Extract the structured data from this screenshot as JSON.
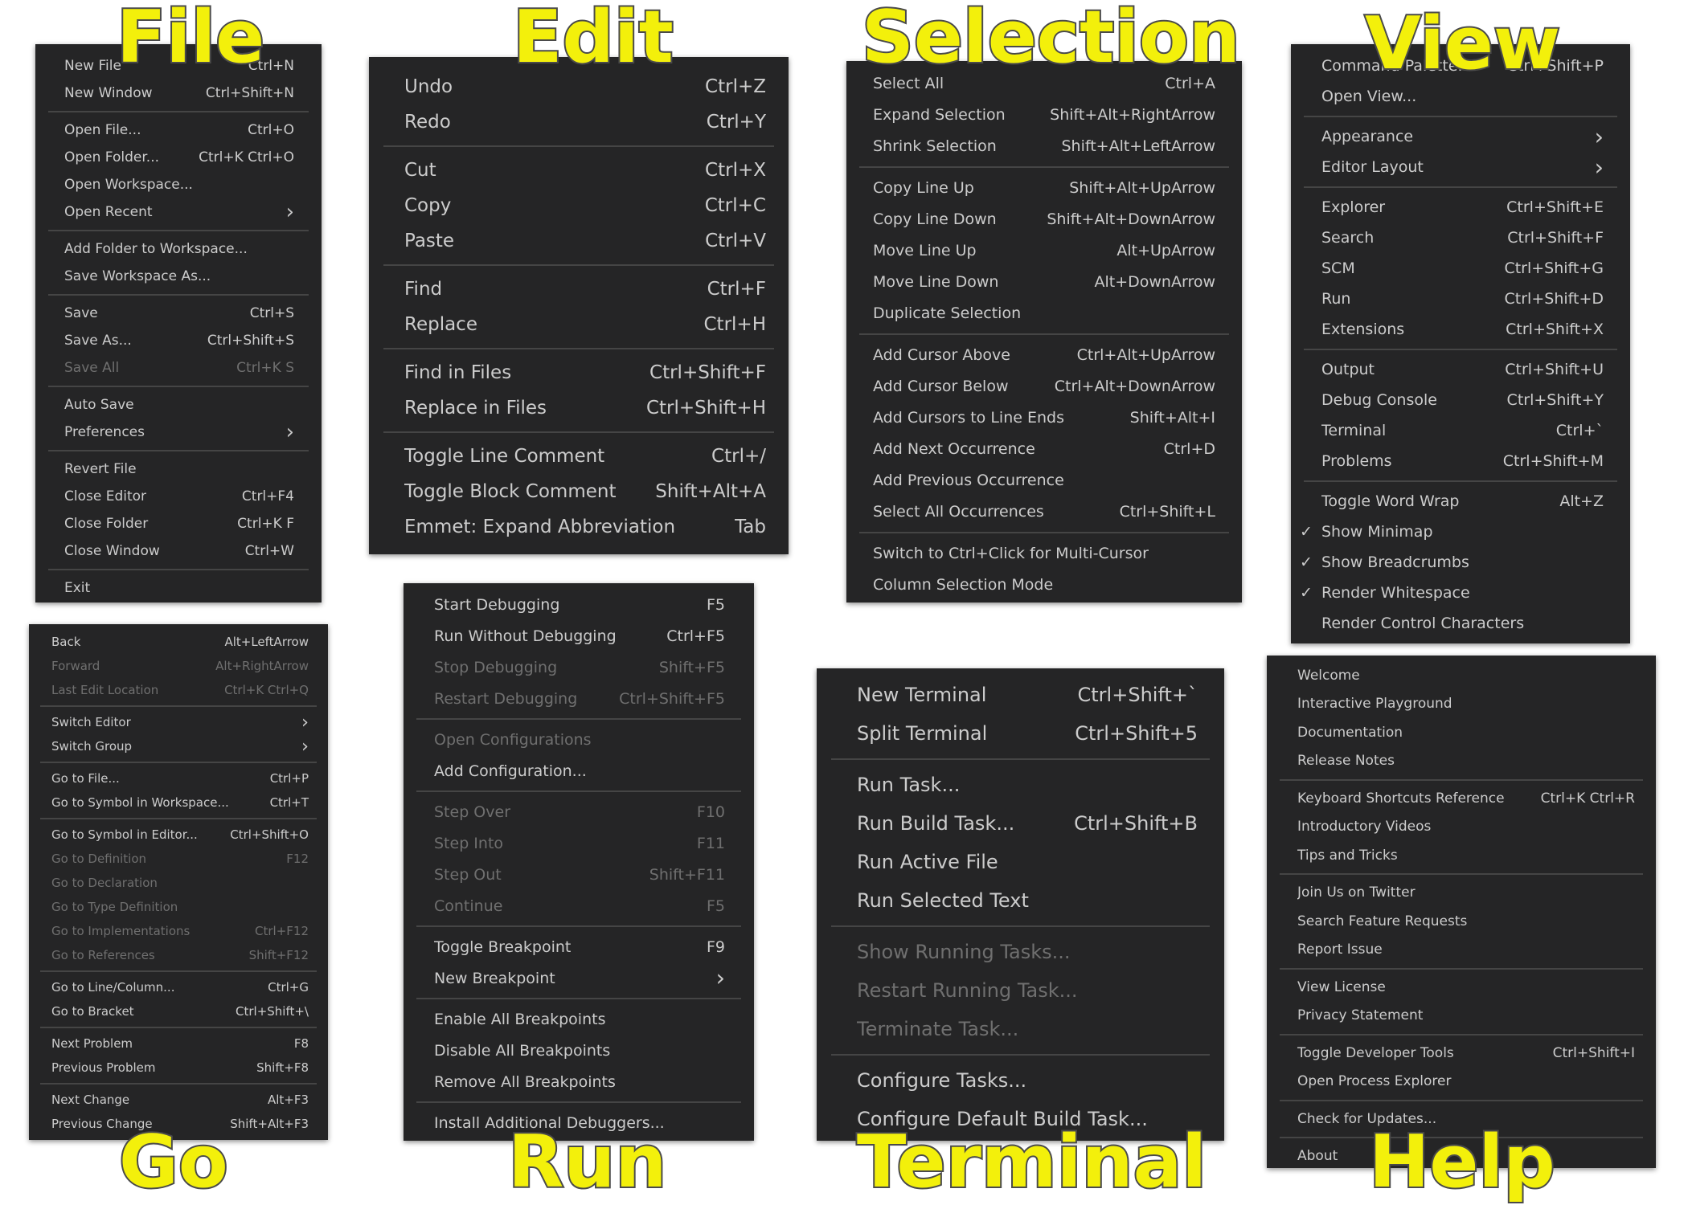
{
  "titles": {
    "file": "File",
    "edit": "Edit",
    "selection": "Selection",
    "view": "View",
    "go": "Go",
    "run": "Run",
    "terminal": "Terminal",
    "help": "Help"
  },
  "colors": {
    "menu_bg": "#252526",
    "text": "#cccccc",
    "disabled": "#6f6f6f",
    "separator": "#454545",
    "title_fill": "#f3f00b",
    "title_outline": "#4a4a4a"
  },
  "menus": [
    {
      "id": "file",
      "groups": [
        [
          {
            "label": "New File",
            "key": "Ctrl+N"
          },
          {
            "label": "New Window",
            "key": "Ctrl+Shift+N"
          }
        ],
        [
          {
            "label": "Open File...",
            "key": "Ctrl+O"
          },
          {
            "label": "Open Folder...",
            "key": "Ctrl+K Ctrl+O"
          },
          {
            "label": "Open Workspace..."
          },
          {
            "label": "Open Recent",
            "submenu": true
          }
        ],
        [
          {
            "label": "Add Folder to Workspace..."
          },
          {
            "label": "Save Workspace As..."
          }
        ],
        [
          {
            "label": "Save",
            "key": "Ctrl+S"
          },
          {
            "label": "Save As...",
            "key": "Ctrl+Shift+S"
          },
          {
            "label": "Save All",
            "key": "Ctrl+K S",
            "disabled": true
          }
        ],
        [
          {
            "label": "Auto Save"
          },
          {
            "label": "Preferences",
            "submenu": true
          }
        ],
        [
          {
            "label": "Revert File"
          },
          {
            "label": "Close Editor",
            "key": "Ctrl+F4"
          },
          {
            "label": "Close Folder",
            "key": "Ctrl+K F"
          },
          {
            "label": "Close Window",
            "key": "Ctrl+W"
          }
        ],
        [
          {
            "label": "Exit"
          }
        ]
      ]
    },
    {
      "id": "edit",
      "groups": [
        [
          {
            "label": "Undo",
            "key": "Ctrl+Z"
          },
          {
            "label": "Redo",
            "key": "Ctrl+Y"
          }
        ],
        [
          {
            "label": "Cut",
            "key": "Ctrl+X"
          },
          {
            "label": "Copy",
            "key": "Ctrl+C"
          },
          {
            "label": "Paste",
            "key": "Ctrl+V"
          }
        ],
        [
          {
            "label": "Find",
            "key": "Ctrl+F"
          },
          {
            "label": "Replace",
            "key": "Ctrl+H"
          }
        ],
        [
          {
            "label": "Find in Files",
            "key": "Ctrl+Shift+F"
          },
          {
            "label": "Replace in Files",
            "key": "Ctrl+Shift+H"
          }
        ],
        [
          {
            "label": "Toggle Line Comment",
            "key": "Ctrl+/"
          },
          {
            "label": "Toggle Block Comment",
            "key": "Shift+Alt+A"
          },
          {
            "label": "Emmet: Expand Abbreviation",
            "key": "Tab"
          }
        ]
      ]
    },
    {
      "id": "selection",
      "groups": [
        [
          {
            "label": "Select All",
            "key": "Ctrl+A"
          },
          {
            "label": "Expand Selection",
            "key": "Shift+Alt+RightArrow"
          },
          {
            "label": "Shrink Selection",
            "key": "Shift+Alt+LeftArrow"
          }
        ],
        [
          {
            "label": "Copy Line Up",
            "key": "Shift+Alt+UpArrow"
          },
          {
            "label": "Copy Line Down",
            "key": "Shift+Alt+DownArrow"
          },
          {
            "label": "Move Line Up",
            "key": "Alt+UpArrow"
          },
          {
            "label": "Move Line Down",
            "key": "Alt+DownArrow"
          },
          {
            "label": "Duplicate Selection"
          }
        ],
        [
          {
            "label": "Add Cursor Above",
            "key": "Ctrl+Alt+UpArrow"
          },
          {
            "label": "Add Cursor Below",
            "key": "Ctrl+Alt+DownArrow"
          },
          {
            "label": "Add Cursors to Line Ends",
            "key": "Shift+Alt+I"
          },
          {
            "label": "Add Next Occurrence",
            "key": "Ctrl+D"
          },
          {
            "label": "Add Previous Occurrence"
          },
          {
            "label": "Select All Occurrences",
            "key": "Ctrl+Shift+L"
          }
        ],
        [
          {
            "label": "Switch to Ctrl+Click for Multi-Cursor"
          },
          {
            "label": "Column Selection Mode"
          }
        ]
      ]
    },
    {
      "id": "view",
      "groups": [
        [
          {
            "label": "Command Palette...",
            "key": "Ctrl+Shift+P"
          },
          {
            "label": "Open View..."
          }
        ],
        [
          {
            "label": "Appearance",
            "submenu": true
          },
          {
            "label": "Editor Layout",
            "submenu": true
          }
        ],
        [
          {
            "label": "Explorer",
            "key": "Ctrl+Shift+E"
          },
          {
            "label": "Search",
            "key": "Ctrl+Shift+F"
          },
          {
            "label": "SCM",
            "key": "Ctrl+Shift+G"
          },
          {
            "label": "Run",
            "key": "Ctrl+Shift+D"
          },
          {
            "label": "Extensions",
            "key": "Ctrl+Shift+X"
          }
        ],
        [
          {
            "label": "Output",
            "key": "Ctrl+Shift+U"
          },
          {
            "label": "Debug Console",
            "key": "Ctrl+Shift+Y"
          },
          {
            "label": "Terminal",
            "key": "Ctrl+`"
          },
          {
            "label": "Problems",
            "key": "Ctrl+Shift+M"
          }
        ],
        [
          {
            "label": "Toggle Word Wrap",
            "key": "Alt+Z"
          },
          {
            "label": "Show Minimap",
            "checked": true
          },
          {
            "label": "Show Breadcrumbs",
            "checked": true
          },
          {
            "label": "Render Whitespace",
            "checked": true
          },
          {
            "label": "Render Control Characters"
          }
        ]
      ]
    },
    {
      "id": "go",
      "groups": [
        [
          {
            "label": "Back",
            "key": "Alt+LeftArrow"
          },
          {
            "label": "Forward",
            "key": "Alt+RightArrow",
            "disabled": true
          },
          {
            "label": "Last Edit Location",
            "key": "Ctrl+K Ctrl+Q",
            "disabled": true
          }
        ],
        [
          {
            "label": "Switch Editor",
            "submenu": true
          },
          {
            "label": "Switch Group",
            "submenu": true
          }
        ],
        [
          {
            "label": "Go to File...",
            "key": "Ctrl+P"
          },
          {
            "label": "Go to Symbol in Workspace...",
            "key": "Ctrl+T"
          }
        ],
        [
          {
            "label": "Go to Symbol in Editor...",
            "key": "Ctrl+Shift+O"
          },
          {
            "label": "Go to Definition",
            "key": "F12",
            "disabled": true
          },
          {
            "label": "Go to Declaration",
            "disabled": true
          },
          {
            "label": "Go to Type Definition",
            "disabled": true
          },
          {
            "label": "Go to Implementations",
            "key": "Ctrl+F12",
            "disabled": true
          },
          {
            "label": "Go to References",
            "key": "Shift+F12",
            "disabled": true
          }
        ],
        [
          {
            "label": "Go to Line/Column...",
            "key": "Ctrl+G"
          },
          {
            "label": "Go to Bracket",
            "key": "Ctrl+Shift+\\"
          }
        ],
        [
          {
            "label": "Next Problem",
            "key": "F8"
          },
          {
            "label": "Previous Problem",
            "key": "Shift+F8"
          }
        ],
        [
          {
            "label": "Next Change",
            "key": "Alt+F3"
          },
          {
            "label": "Previous Change",
            "key": "Shift+Alt+F3"
          }
        ]
      ]
    },
    {
      "id": "run",
      "groups": [
        [
          {
            "label": "Start Debugging",
            "key": "F5"
          },
          {
            "label": "Run Without Debugging",
            "key": "Ctrl+F5"
          },
          {
            "label": "Stop Debugging",
            "key": "Shift+F5",
            "disabled": true
          },
          {
            "label": "Restart Debugging",
            "key": "Ctrl+Shift+F5",
            "disabled": true
          }
        ],
        [
          {
            "label": "Open Configurations",
            "disabled": true
          },
          {
            "label": "Add Configuration..."
          }
        ],
        [
          {
            "label": "Step Over",
            "key": "F10",
            "disabled": true
          },
          {
            "label": "Step Into",
            "key": "F11",
            "disabled": true
          },
          {
            "label": "Step Out",
            "key": "Shift+F11",
            "disabled": true
          },
          {
            "label": "Continue",
            "key": "F5",
            "disabled": true
          }
        ],
        [
          {
            "label": "Toggle Breakpoint",
            "key": "F9"
          },
          {
            "label": "New Breakpoint",
            "submenu": true
          }
        ],
        [
          {
            "label": "Enable All Breakpoints"
          },
          {
            "label": "Disable All Breakpoints"
          },
          {
            "label": "Remove All Breakpoints"
          }
        ],
        [
          {
            "label": "Install Additional Debuggers..."
          }
        ]
      ]
    },
    {
      "id": "terminal",
      "groups": [
        [
          {
            "label": "New Terminal",
            "key": "Ctrl+Shift+`"
          },
          {
            "label": "Split Terminal",
            "key": "Ctrl+Shift+5"
          }
        ],
        [
          {
            "label": "Run Task..."
          },
          {
            "label": "Run Build Task...",
            "key": "Ctrl+Shift+B"
          },
          {
            "label": "Run Active File"
          },
          {
            "label": "Run Selected Text"
          }
        ],
        [
          {
            "label": "Show Running Tasks...",
            "disabled": true
          },
          {
            "label": "Restart Running Task...",
            "disabled": true
          },
          {
            "label": "Terminate Task...",
            "disabled": true
          }
        ],
        [
          {
            "label": "Configure Tasks..."
          },
          {
            "label": "Configure Default Build Task..."
          }
        ]
      ]
    },
    {
      "id": "help",
      "groups": [
        [
          {
            "label": "Welcome"
          },
          {
            "label": "Interactive Playground"
          },
          {
            "label": "Documentation"
          },
          {
            "label": "Release Notes"
          }
        ],
        [
          {
            "label": "Keyboard Shortcuts Reference",
            "key": "Ctrl+K Ctrl+R"
          },
          {
            "label": "Introductory Videos"
          },
          {
            "label": "Tips and Tricks"
          }
        ],
        [
          {
            "label": "Join Us on Twitter"
          },
          {
            "label": "Search Feature Requests"
          },
          {
            "label": "Report Issue"
          }
        ],
        [
          {
            "label": "View License"
          },
          {
            "label": "Privacy Statement"
          }
        ],
        [
          {
            "label": "Toggle Developer Tools",
            "key": "Ctrl+Shift+I"
          },
          {
            "label": "Open Process Explorer"
          }
        ],
        [
          {
            "label": "Check for Updates..."
          }
        ],
        [
          {
            "label": "About"
          }
        ]
      ]
    }
  ]
}
